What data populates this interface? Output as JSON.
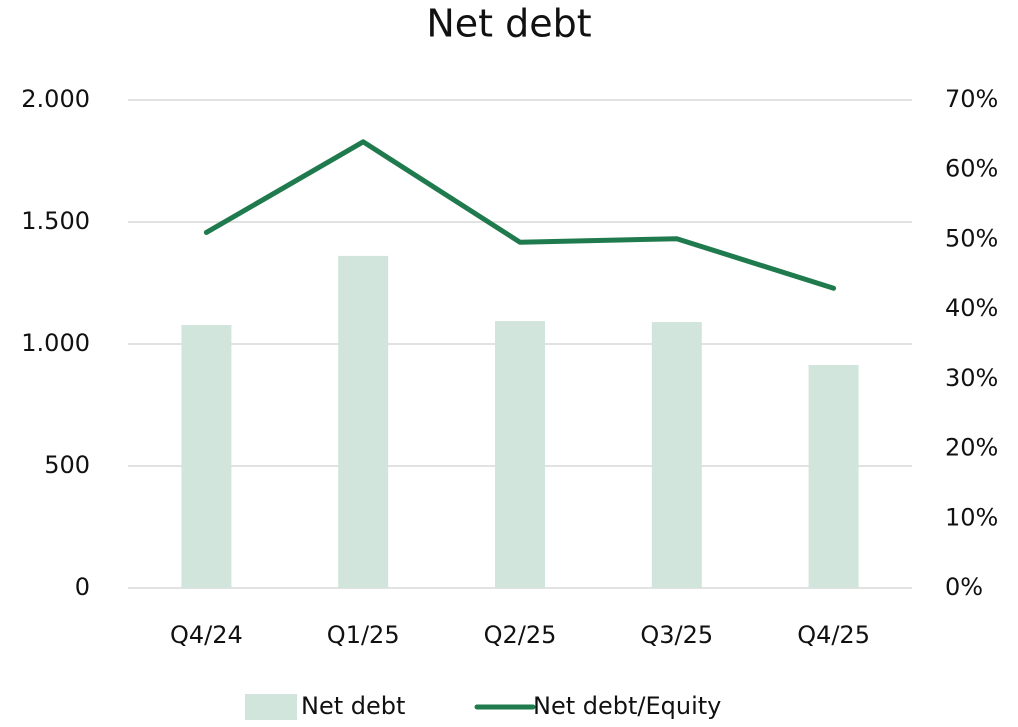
{
  "chart_data": {
    "type": "bar_line",
    "title": "Net debt",
    "categories": [
      "Q4/24",
      "Q1/25",
      "Q2/25",
      "Q3/25",
      "Q4/25"
    ],
    "series": [
      {
        "name": "Net debt",
        "color": "#d1e5dc",
        "values": [
          1078,
          1361,
          1094,
          1090,
          914
        ]
      },
      {
        "name": "Net debt/Equity",
        "color": "#1f7a4d",
        "values": [
          51,
          64,
          49.6,
          50.1,
          43
        ],
        "axis": "y2"
      }
    ],
    "ylim": [
      0,
      2000
    ],
    "yticks": [
      0,
      500,
      {
        "value": 1000,
        "label": "1.000"
      },
      {
        "value": 1500,
        "label": "1.500"
      },
      {
        "value": 2000,
        "label": "2.000"
      }
    ],
    "y2lim": [
      0,
      70
    ],
    "y2ticks": [
      {
        "value": 0,
        "label": "0%"
      },
      {
        "value": 10,
        "label": "10%"
      },
      {
        "value": 20,
        "label": "20%"
      },
      {
        "value": 30,
        "label": "30%"
      },
      {
        "value": 40,
        "label": "40%"
      },
      {
        "value": 50,
        "label": "50%"
      },
      {
        "value": 60,
        "label": "60%"
      },
      {
        "value": 70,
        "label": "70%"
      }
    ],
    "grid": true,
    "legend": "bottom"
  }
}
